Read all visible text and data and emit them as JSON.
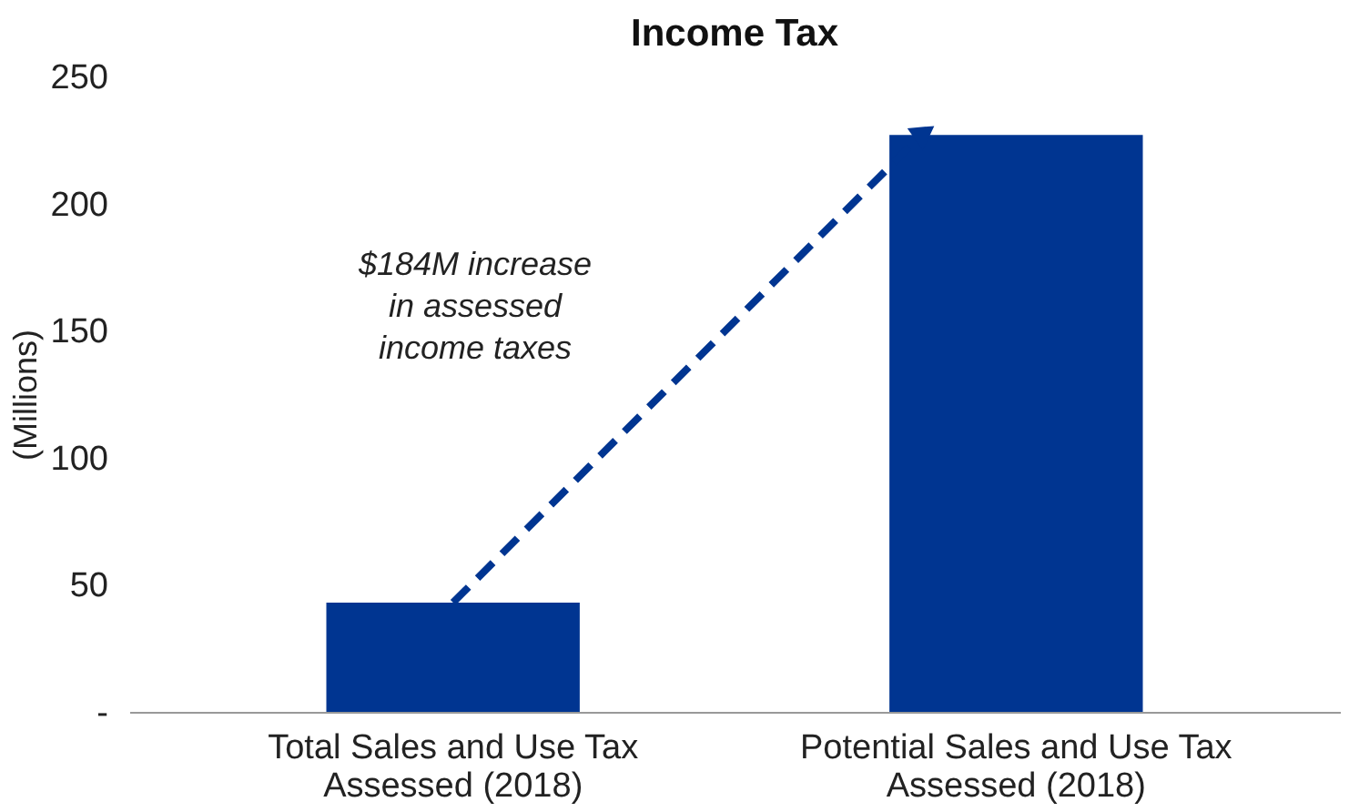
{
  "chart_data": {
    "type": "bar",
    "title": "Income Tax",
    "ylabel": "(Millions)",
    "categories": [
      "Total Sales and Use Tax\nAssessed (2018)",
      "Potential Sales and Use Tax\nAssessed (2018)"
    ],
    "values": [
      43,
      227
    ],
    "color": "#003591",
    "ylim": [
      0,
      250
    ],
    "yticks": [
      {
        "value": 0,
        "label": "-"
      },
      50,
      100,
      150,
      200,
      250
    ],
    "grid": false,
    "annotations": [
      "$184M increase\nin assessed\nincome taxes"
    ]
  }
}
